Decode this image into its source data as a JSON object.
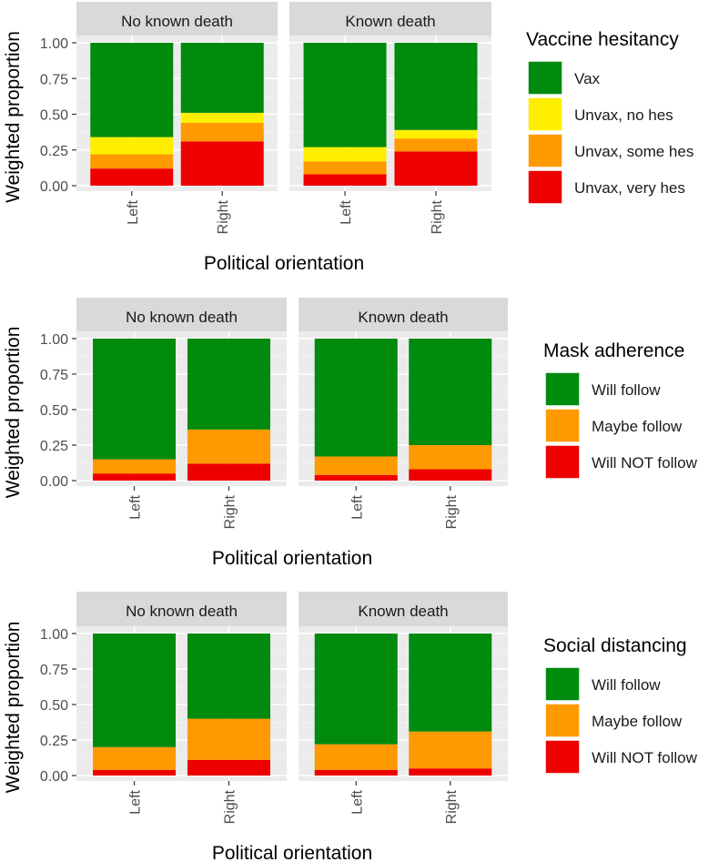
{
  "chart_data": [
    {
      "type": "bar",
      "stacked": true,
      "ylabel": "Weighted proportion",
      "xlabel": "Political orientation",
      "ylim": [
        0,
        1
      ],
      "yticks": [
        "0.00",
        "0.25",
        "0.50",
        "0.75",
        "1.00"
      ],
      "categories": [
        "Left",
        "Right"
      ],
      "panels": [
        {
          "title": "No known death",
          "stacks": [
            [
              0.12,
              0.1,
              0.12,
              0.66
            ],
            [
              0.31,
              0.13,
              0.07,
              0.49
            ]
          ]
        },
        {
          "title": "Known death",
          "stacks": [
            [
              0.08,
              0.09,
              0.1,
              0.73
            ],
            [
              0.24,
              0.09,
              0.06,
              0.61
            ]
          ]
        }
      ],
      "legend": {
        "title": "Vaccine hesitancy",
        "entries": [
          {
            "label": "Vax",
            "color": "#008a0e"
          },
          {
            "label": "Unvax, no hes",
            "color": "#ffee00"
          },
          {
            "label": "Unvax, some hes",
            "color": "#ff9900"
          },
          {
            "label": "Unvax, very hes",
            "color": "#ee0000"
          }
        ]
      },
      "stack_colors": [
        "#ee0000",
        "#ff9900",
        "#ffee00",
        "#008a0e"
      ]
    },
    {
      "type": "bar",
      "stacked": true,
      "ylabel": "Weighted proportion",
      "xlabel": "Political orientation",
      "ylim": [
        0,
        1
      ],
      "yticks": [
        "0.00",
        "0.25",
        "0.50",
        "0.75",
        "1.00"
      ],
      "categories": [
        "Left",
        "Right"
      ],
      "panels": [
        {
          "title": "No known death",
          "stacks": [
            [
              0.05,
              0.1,
              0.85
            ],
            [
              0.12,
              0.24,
              0.64
            ]
          ]
        },
        {
          "title": "Known death",
          "stacks": [
            [
              0.04,
              0.13,
              0.83
            ],
            [
              0.08,
              0.17,
              0.75
            ]
          ]
        }
      ],
      "legend": {
        "title": "Mask adherence",
        "entries": [
          {
            "label": "Will follow",
            "color": "#008a0e"
          },
          {
            "label": "Maybe follow",
            "color": "#ff9900"
          },
          {
            "label": "Will NOT follow",
            "color": "#ee0000"
          }
        ]
      },
      "stack_colors": [
        "#ee0000",
        "#ff9900",
        "#008a0e"
      ]
    },
    {
      "type": "bar",
      "stacked": true,
      "ylabel": "Weighted proportion",
      "xlabel": "Political orientation",
      "ylim": [
        0,
        1
      ],
      "yticks": [
        "0.00",
        "0.25",
        "0.50",
        "0.75",
        "1.00"
      ],
      "categories": [
        "Left",
        "Right"
      ],
      "panels": [
        {
          "title": "No known death",
          "stacks": [
            [
              0.04,
              0.16,
              0.8
            ],
            [
              0.11,
              0.29,
              0.6
            ]
          ]
        },
        {
          "title": "Known death",
          "stacks": [
            [
              0.04,
              0.18,
              0.78
            ],
            [
              0.05,
              0.26,
              0.69
            ]
          ]
        }
      ],
      "legend": {
        "title": "Social distancing",
        "entries": [
          {
            "label": "Will follow",
            "color": "#008a0e"
          },
          {
            "label": "Maybe follow",
            "color": "#ff9900"
          },
          {
            "label": "Will NOT follow",
            "color": "#ee0000"
          }
        ]
      },
      "stack_colors": [
        "#ee0000",
        "#ff9900",
        "#008a0e"
      ]
    }
  ]
}
